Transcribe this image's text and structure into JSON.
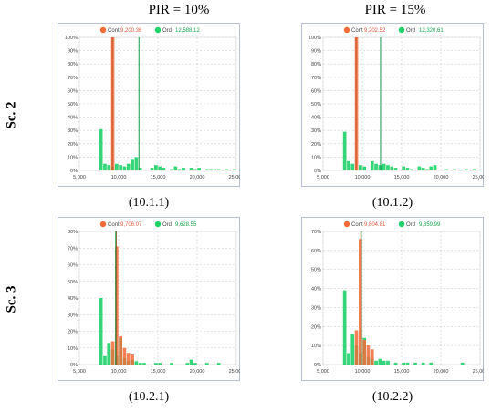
{
  "column_titles": [
    "PIR = 10%",
    "PIR = 15%"
  ],
  "row_labels": [
    "Sc. 2",
    "Sc. 3"
  ],
  "colors": {
    "cont": "#f26b38",
    "ord": "#1fd26a",
    "cont_text": "#e8583e",
    "ord_text": "#19a84f",
    "frame": "#b9bfd6",
    "grid": "#cfcfcf"
  },
  "chart_data": [
    {
      "type": "bar",
      "caption": "(10.1.1)",
      "legend": [
        {
          "name": "Cont",
          "value": "9,200.36"
        },
        {
          "name": "Ord",
          "value": "12,588.12"
        }
      ],
      "xlim": [
        5000,
        25000
      ],
      "ylim": [
        0,
        100
      ],
      "x_ticks": [
        "5,000",
        "10,000",
        "15,000",
        "20,000",
        "25,000"
      ],
      "y_ticks": [
        "0%",
        "10%",
        "20%",
        "30%",
        "40%",
        "50%",
        "60%",
        "70%",
        "80%",
        "90%",
        "100%"
      ],
      "bin_width": 500,
      "series": [
        {
          "name": "Ord",
          "bins": [
            [
              7500,
              31
            ],
            [
              8000,
              5
            ],
            [
              8500,
              4
            ],
            [
              9000,
              3
            ],
            [
              9500,
              5
            ],
            [
              10000,
              4
            ],
            [
              10500,
              3
            ],
            [
              11000,
              5
            ],
            [
              11500,
              8
            ],
            [
              12000,
              10
            ],
            [
              12500,
              2
            ],
            [
              14000,
              2
            ],
            [
              14500,
              4
            ],
            [
              15000,
              3
            ],
            [
              15500,
              2
            ],
            [
              16500,
              1
            ],
            [
              17000,
              3
            ],
            [
              17500,
              1
            ],
            [
              18000,
              2
            ],
            [
              19000,
              2
            ],
            [
              19500,
              1
            ],
            [
              20000,
              2
            ],
            [
              21000,
              1
            ],
            [
              21500,
              1
            ],
            [
              22000,
              1
            ],
            [
              22500,
              1
            ],
            [
              23500,
              1
            ],
            [
              24500,
              1
            ]
          ]
        },
        {
          "name": "Cont",
          "bins": [
            [
              9000,
              100
            ]
          ]
        }
      ],
      "mean_lines": [
        {
          "name": "Cont",
          "x": 9200.36
        },
        {
          "name": "Ord",
          "x": 12588.12
        }
      ]
    },
    {
      "type": "bar",
      "caption": "(10.1.2)",
      "legend": [
        {
          "name": "Cont",
          "value": "9,202.52"
        },
        {
          "name": "Ord",
          "value": "12,320.61"
        }
      ],
      "xlim": [
        5000,
        25000
      ],
      "ylim": [
        0,
        100
      ],
      "x_ticks": [
        "5,000",
        "10,000",
        "15,000",
        "20,000",
        "25,000"
      ],
      "y_ticks": [
        "0%",
        "10%",
        "20%",
        "30%",
        "40%",
        "50%",
        "60%",
        "70%",
        "80%",
        "90%",
        "100%"
      ],
      "bin_width": 500,
      "series": [
        {
          "name": "Ord",
          "bins": [
            [
              7500,
              29
            ],
            [
              8000,
              7
            ],
            [
              8500,
              5
            ],
            [
              9500,
              4
            ],
            [
              10000,
              3
            ],
            [
              11000,
              7
            ],
            [
              11500,
              5
            ],
            [
              12000,
              4
            ],
            [
              12500,
              5
            ],
            [
              13000,
              4
            ],
            [
              13500,
              3
            ],
            [
              14000,
              2
            ],
            [
              15000,
              3
            ],
            [
              15500,
              2
            ],
            [
              16000,
              1
            ],
            [
              17000,
              3
            ],
            [
              17500,
              2
            ],
            [
              18000,
              1
            ],
            [
              18500,
              3
            ],
            [
              19000,
              4
            ],
            [
              20500,
              1
            ],
            [
              21500,
              1
            ],
            [
              23000,
              1
            ],
            [
              24000,
              1
            ]
          ]
        },
        {
          "name": "Cont",
          "bins": [
            [
              9000,
              100
            ]
          ]
        }
      ],
      "mean_lines": [
        {
          "name": "Cont",
          "x": 9202.52
        },
        {
          "name": "Ord",
          "x": 12320.61
        }
      ]
    },
    {
      "type": "bar",
      "caption": "(10.2.1)",
      "legend": [
        {
          "name": "Cont",
          "value": "9,706.07"
        },
        {
          "name": "Ord",
          "value": "9,628.55"
        }
      ],
      "xlim": [
        5000,
        25000
      ],
      "ylim": [
        0,
        80
      ],
      "x_ticks": [
        "5,000",
        "10,000",
        "15,000",
        "20,000",
        "25,000"
      ],
      "y_ticks": [
        "0%",
        "10%",
        "20%",
        "30%",
        "40%",
        "50%",
        "60%",
        "70%",
        "80%"
      ],
      "bin_width": 500,
      "series": [
        {
          "name": "Ord",
          "bins": [
            [
              7500,
              40
            ],
            [
              8000,
              5
            ],
            [
              8500,
              13
            ],
            [
              9000,
              9
            ],
            [
              9500,
              5
            ],
            [
              10000,
              16
            ],
            [
              10500,
              4
            ],
            [
              11000,
              2
            ],
            [
              11500,
              3
            ],
            [
              12000,
              2
            ],
            [
              12500,
              1
            ],
            [
              13000,
              1
            ],
            [
              14500,
              1
            ],
            [
              15000,
              1
            ],
            [
              16500,
              1
            ],
            [
              18500,
              1
            ],
            [
              19000,
              3
            ],
            [
              19500,
              1
            ],
            [
              21000,
              1
            ],
            [
              22500,
              1
            ]
          ]
        },
        {
          "name": "Cont",
          "bins": [
            [
              9000,
              14
            ],
            [
              9500,
              71
            ],
            [
              10000,
              17
            ],
            [
              10500,
              10
            ],
            [
              11000,
              7
            ],
            [
              11500,
              6
            ]
          ]
        }
      ],
      "mean_lines": [
        {
          "name": "Cont",
          "x": 9706.07
        },
        {
          "name": "Ord",
          "x": 9628.55
        }
      ]
    },
    {
      "type": "bar",
      "caption": "(10.2.2)",
      "legend": [
        {
          "name": "Cont",
          "value": "9,804.81"
        },
        {
          "name": "Ord",
          "value": "9,859.99"
        }
      ],
      "xlim": [
        5000,
        25000
      ],
      "ylim": [
        0,
        70
      ],
      "x_ticks": [
        "5,000",
        "10,000",
        "15,000",
        "20,000",
        "25,000"
      ],
      "y_ticks": [
        "0%",
        "10%",
        "20%",
        "30%",
        "40%",
        "50%",
        "60%",
        "70%"
      ],
      "bin_width": 500,
      "series": [
        {
          "name": "Ord",
          "bins": [
            [
              7500,
              39
            ],
            [
              8000,
              6
            ],
            [
              8500,
              16
            ],
            [
              9000,
              10
            ],
            [
              9500,
              6
            ],
            [
              10000,
              14
            ],
            [
              10500,
              4
            ],
            [
              11000,
              3
            ],
            [
              11500,
              2
            ],
            [
              12000,
              3
            ],
            [
              12500,
              2
            ],
            [
              13000,
              2
            ],
            [
              14000,
              1
            ],
            [
              15000,
              1
            ],
            [
              15500,
              1
            ],
            [
              16500,
              1
            ],
            [
              17500,
              1
            ],
            [
              18500,
              1
            ],
            [
              22500,
              1
            ]
          ]
        },
        {
          "name": "Cont",
          "bins": [
            [
              9000,
              18
            ],
            [
              9500,
              66
            ],
            [
              10000,
              13
            ],
            [
              10500,
              10
            ],
            [
              11000,
              8
            ]
          ]
        }
      ],
      "mean_lines": [
        {
          "name": "Cont",
          "x": 9804.81
        },
        {
          "name": "Ord",
          "x": 9859.99
        }
      ]
    }
  ]
}
